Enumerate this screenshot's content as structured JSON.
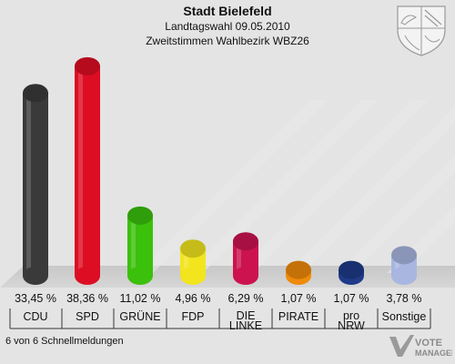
{
  "header": {
    "title": "Stadt Bielefeld",
    "subtitle": "Landtagswahl 09.05.2010",
    "subsubtitle": "Zweitstimmen Wahlbezirk WBZ26"
  },
  "footer": {
    "text": "6 von 6 Schnellmeldungen"
  },
  "watermark": {
    "line1": "VOTE",
    "line2": "MANAGER"
  },
  "chart_data": {
    "type": "bar",
    "title": "Stadt Bielefeld",
    "subtitle": "Landtagswahl 09.05.2010 · Zweitstimmen Wahlbezirk WBZ26",
    "categories": [
      "CDU",
      "SPD",
      "GRÜNE",
      "FDP",
      "DIE LINKE",
      "PIRATE",
      "pro NRW",
      "Sonstige"
    ],
    "category_lines": [
      [
        "CDU"
      ],
      [
        "SPD"
      ],
      [
        "GRÜNE"
      ],
      [
        "FDP"
      ],
      [
        "DIE",
        "LINKE"
      ],
      [
        "PIRATE"
      ],
      [
        "pro",
        "NRW"
      ],
      [
        "Sonstige"
      ]
    ],
    "values": [
      33.45,
      38.36,
      11.02,
      4.96,
      6.29,
      1.07,
      1.07,
      3.78
    ],
    "value_labels": [
      "33,45 %",
      "38,36 %",
      "11,02 %",
      "4,96 %",
      "6,29 %",
      "1,07 %",
      "1,07 %",
      "3,78 %"
    ],
    "colors": [
      "#3a3a3a",
      "#dd0d23",
      "#3bc00c",
      "#f2e51e",
      "#cc1350",
      "#ef8a0a",
      "#1f3a88",
      "#a8b6e0"
    ],
    "unit": "%",
    "xlabel": "",
    "ylabel": "",
    "grid": false,
    "legend": "none"
  }
}
